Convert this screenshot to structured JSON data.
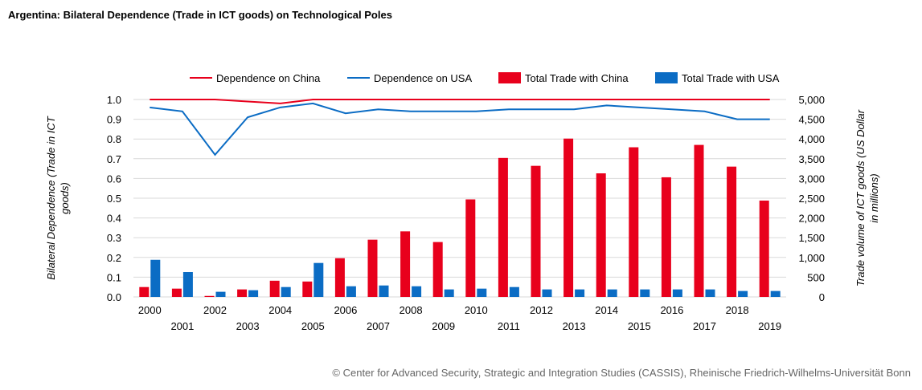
{
  "title": "Argentina: Bilateral Dependence (Trade in ICT goods) on Technological Poles",
  "copyright": "© Center for Advanced Security, Strategic and Integration Studies (CASSIS), Rheinische Friedrich-Wilhelms-Universität Bonn",
  "colors": {
    "china": "#e8001c",
    "usa": "#0b6cc4",
    "grid": "#d9d9d9"
  },
  "chart_data": {
    "type": "bar",
    "categories": [
      "2000",
      "2001",
      "2002",
      "2003",
      "2004",
      "2005",
      "2006",
      "2007",
      "2008",
      "2009",
      "2010",
      "2011",
      "2012",
      "2013",
      "2014",
      "2015",
      "2016",
      "2017",
      "2018",
      "2019"
    ],
    "y_left": {
      "label": "Bilateral Dependence (Trade in ICT goods)",
      "range": [
        0,
        1.0
      ],
      "ticks": [
        "0.0",
        "0.1",
        "0.2",
        "0.3",
        "0.4",
        "0.5",
        "0.6",
        "0.7",
        "0.8",
        "0.9",
        "1.0"
      ]
    },
    "y_right": {
      "label": "Trade volume of ICT goods (US Dollar in millions)",
      "range": [
        0,
        5000
      ],
      "ticks": [
        "0",
        "500",
        "1,000",
        "1,500",
        "2,000",
        "2,500",
        "3,000",
        "3,500",
        "4,000",
        "4,500",
        "5,000"
      ]
    },
    "grid": true,
    "legend_position": "top",
    "bars": [
      {
        "name": "Total Trade with China",
        "axis": "right",
        "color": "#e8001c",
        "values": [
          250,
          210,
          25,
          190,
          410,
          390,
          980,
          1450,
          1660,
          1390,
          2470,
          3520,
          3320,
          4010,
          3130,
          3790,
          3030,
          3850,
          3300,
          2440
        ]
      },
      {
        "name": "Total Trade with USA",
        "axis": "right",
        "color": "#0b6cc4",
        "values": [
          940,
          630,
          130,
          170,
          250,
          860,
          270,
          290,
          270,
          190,
          210,
          250,
          190,
          190,
          190,
          190,
          190,
          190,
          150,
          150
        ]
      }
    ],
    "lines": [
      {
        "name": "Dependence on China",
        "axis": "left",
        "color": "#e8001c",
        "values": [
          1.0,
          1.0,
          1.0,
          0.99,
          0.98,
          1.0,
          1.0,
          1.0,
          1.0,
          1.0,
          1.0,
          1.0,
          1.0,
          1.0,
          1.0,
          1.0,
          1.0,
          1.0,
          1.0,
          1.0
        ]
      },
      {
        "name": "Dependence on USA",
        "axis": "left",
        "color": "#0b6cc4",
        "values": [
          0.96,
          0.94,
          0.72,
          0.91,
          0.96,
          0.98,
          0.93,
          0.95,
          0.94,
          0.94,
          0.94,
          0.95,
          0.95,
          0.95,
          0.97,
          0.96,
          0.95,
          0.94,
          0.9,
          0.9
        ]
      }
    ],
    "legend": [
      "Dependence on China",
      "Dependence on USA",
      "Total Trade with China",
      "Total Trade with USA"
    ]
  }
}
